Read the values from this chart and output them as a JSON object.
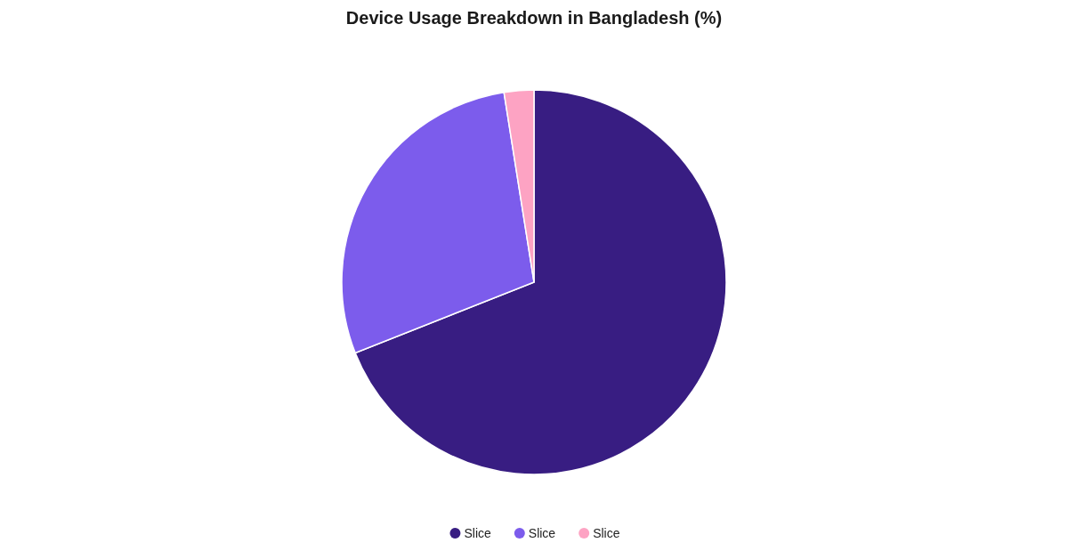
{
  "chart_data": {
    "type": "pie",
    "title": "Device Usage Breakdown in Bangladesh (%)",
    "categories": [
      "Slice",
      "Slice",
      "Slice"
    ],
    "values": [
      69,
      28.5,
      2.5
    ],
    "colors": [
      "#381d82",
      "#7c5cec",
      "#fda3c3"
    ],
    "legend": "bottom"
  }
}
